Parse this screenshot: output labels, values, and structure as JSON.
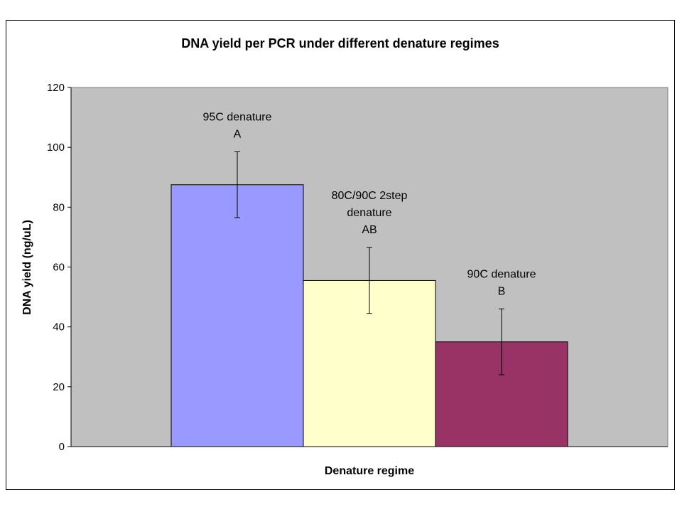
{
  "chart_data": {
    "type": "bar",
    "title": "DNA yield per PCR under different denature regimes",
    "xlabel": "Denature regime",
    "ylabel": "DNA yield (ng/uL)",
    "ylim": [
      0,
      120
    ],
    "yticks": [
      "0",
      "20",
      "40",
      "60",
      "80",
      "100",
      "120"
    ],
    "grid": false,
    "legend": "none",
    "plot_background": "#C0C0C0",
    "bars": [
      {
        "label_lines": [
          "95C denature",
          "A"
        ],
        "value": 87.5,
        "error": 11,
        "color": "#9999FF"
      },
      {
        "label_lines": [
          "80C/90C 2step",
          "denature",
          "AB"
        ],
        "value": 55.5,
        "error": 11,
        "color": "#FFFFCC"
      },
      {
        "label_lines": [
          "90C denature",
          "B"
        ],
        "value": 35,
        "error": 11,
        "color": "#993366"
      }
    ]
  }
}
